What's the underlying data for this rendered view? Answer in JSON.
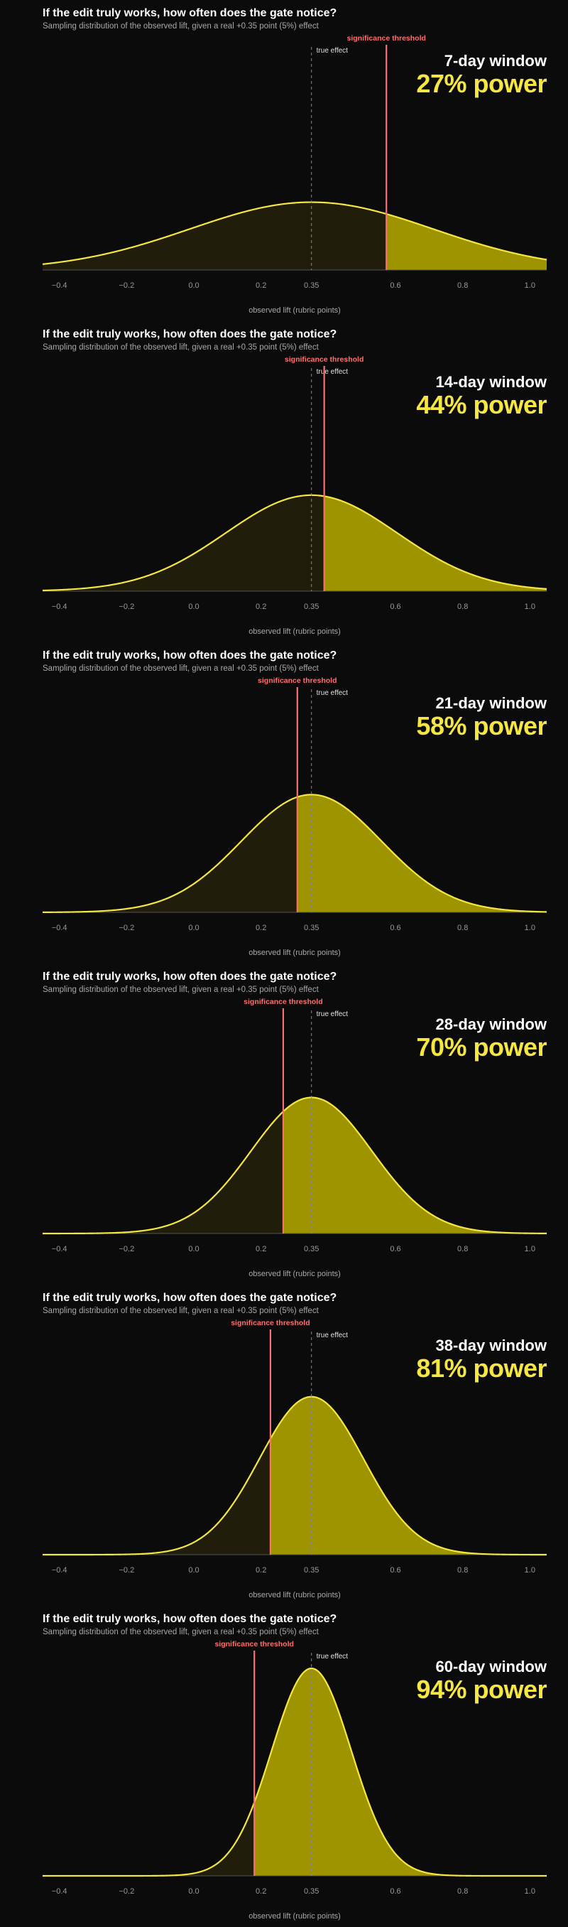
{
  "chart_data": [
    {
      "type": "area",
      "title": "If the edit truly works, how often does the gate notice?",
      "subtitle": "Sampling distribution of the observed lift, given a real +0.35 point (5%) effect",
      "window_label": "7-day window",
      "power_label": "27% power",
      "power": 0.27,
      "mean": 0.35,
      "sd": 0.361,
      "threshold": 0.573,
      "xlim": [
        -0.45,
        1.05
      ],
      "xticks": [
        "-0.4",
        "-0.2",
        "0.0",
        "0.2",
        "0.35",
        "0.6",
        "0.8",
        "1.0"
      ],
      "xlabel": "observed lift (rubric points)",
      "true_effect_label": "true effect",
      "threshold_label": "significance threshold"
    },
    {
      "type": "area",
      "title": "If the edit truly works, how often does the gate notice?",
      "subtitle": "Sampling distribution of the observed lift, given a real +0.35 point (5%) effect",
      "window_label": "14-day window",
      "power_label": "44% power",
      "power": 0.44,
      "mean": 0.35,
      "sd": 0.255,
      "threshold": 0.388,
      "xlim": [
        -0.45,
        1.05
      ],
      "xticks": [
        "-0.4",
        "-0.2",
        "0.0",
        "0.2",
        "0.35",
        "0.6",
        "0.8",
        "1.0"
      ],
      "xlabel": "observed lift (rubric points)",
      "true_effect_label": "true effect",
      "threshold_label": "significance threshold"
    },
    {
      "type": "area",
      "title": "If the edit truly works, how often does the gate notice?",
      "subtitle": "Sampling distribution of the observed lift, given a real +0.35 point (5%) effect",
      "window_label": "21-day window",
      "power_label": "58% power",
      "power": 0.58,
      "mean": 0.35,
      "sd": 0.208,
      "threshold": 0.308,
      "xlim": [
        -0.45,
        1.05
      ],
      "xticks": [
        "-0.4",
        "-0.2",
        "0.0",
        "0.2",
        "0.35",
        "0.6",
        "0.8",
        "1.0"
      ],
      "xlabel": "observed lift (rubric points)",
      "true_effect_label": "true effect",
      "threshold_label": "significance threshold"
    },
    {
      "type": "area",
      "title": "If the edit truly works, how often does the gate notice?",
      "subtitle": "Sampling distribution of the observed lift, given a real +0.35 point (5%) effect",
      "window_label": "28-day window",
      "power_label": "70% power",
      "power": 0.7,
      "mean": 0.35,
      "sd": 0.18,
      "threshold": 0.266,
      "xlim": [
        -0.45,
        1.05
      ],
      "xticks": [
        "-0.4",
        "-0.2",
        "0.0",
        "0.2",
        "0.35",
        "0.6",
        "0.8",
        "1.0"
      ],
      "xlabel": "observed lift (rubric points)",
      "true_effect_label": "true effect",
      "threshold_label": "significance threshold"
    },
    {
      "type": "area",
      "title": "If the edit truly works, how often does the gate notice?",
      "subtitle": "Sampling distribution of the observed lift, given a real +0.35 point (5%) effect",
      "window_label": "38-day window",
      "power_label": "81% power",
      "power": 0.81,
      "mean": 0.35,
      "sd": 0.155,
      "threshold": 0.228,
      "xlim": [
        -0.45,
        1.05
      ],
      "xticks": [
        "-0.4",
        "-0.2",
        "0.0",
        "0.2",
        "0.35",
        "0.6",
        "0.8",
        "1.0"
      ],
      "xlabel": "observed lift (rubric points)",
      "true_effect_label": "true effect",
      "threshold_label": "significance threshold"
    },
    {
      "type": "area",
      "title": "If the edit truly works, how often does the gate notice?",
      "subtitle": "Sampling distribution of the observed lift, given a real +0.35 point (5%) effect",
      "window_label": "60-day window",
      "power_label": "94% power",
      "power": 0.94,
      "mean": 0.35,
      "sd": 0.118,
      "threshold": 0.18,
      "xlim": [
        -0.45,
        1.05
      ],
      "xticks": [
        "-0.4",
        "-0.2",
        "0.0",
        "0.2",
        "0.35",
        "0.6",
        "0.8",
        "1.0"
      ],
      "xlabel": "observed lift (rubric points)",
      "true_effect_label": "true effect",
      "threshold_label": "significance threshold"
    }
  ],
  "colors": {
    "background": "#0b0b0b",
    "curve": "#f5e642",
    "power_fill": "#9e9400",
    "miss_fill": "#201d0b",
    "threshold": "#ff6f6f",
    "true_effect": "#8a8a8a",
    "axis": "#555555"
  }
}
